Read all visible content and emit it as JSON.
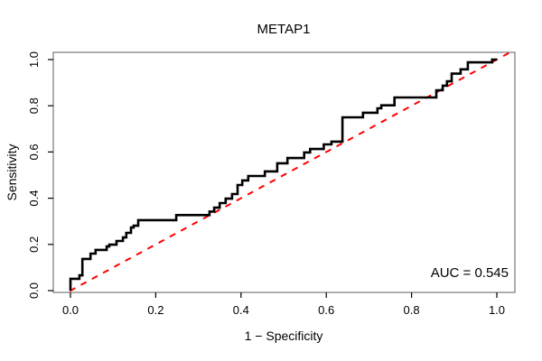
{
  "chart_data": {
    "type": "line",
    "subtype": "roc-curve",
    "title": "METAP1",
    "xlabel": "1 − Specificity",
    "ylabel": "Sensitivity",
    "xlim": [
      0.0,
      1.0
    ],
    "ylim": [
      0.0,
      1.0
    ],
    "x_tick_labels": [
      "0.0",
      "0.2",
      "0.4",
      "0.6",
      "0.8",
      "1.0"
    ],
    "y_tick_labels": [
      "0.0",
      "0.2",
      "0.4",
      "0.6",
      "0.8",
      "1.0"
    ],
    "x_tick_values": [
      0.0,
      0.2,
      0.4,
      0.6,
      0.8,
      1.0
    ],
    "y_tick_values": [
      0.0,
      0.2,
      0.4,
      0.6,
      0.8,
      1.0
    ],
    "grid": false,
    "annotation": "AUC = 0.545",
    "auc": 0.545,
    "curve_color": "#000000",
    "diagonal_color": "#ff0000",
    "diagonal_style": "dashed",
    "box_color": "#777777",
    "series": [
      {
        "name": "ROC step curve",
        "start": [
          0.0,
          0.0
        ],
        "points": [
          [
            0.0,
            0.051
          ],
          [
            0.021,
            0.066
          ],
          [
            0.028,
            0.137
          ],
          [
            0.047,
            0.16
          ],
          [
            0.059,
            0.176
          ],
          [
            0.085,
            0.191
          ],
          [
            0.091,
            0.199
          ],
          [
            0.108,
            0.215
          ],
          [
            0.123,
            0.23
          ],
          [
            0.131,
            0.25
          ],
          [
            0.142,
            0.273
          ],
          [
            0.148,
            0.281
          ],
          [
            0.159,
            0.305
          ],
          [
            0.248,
            0.327
          ],
          [
            0.326,
            0.342
          ],
          [
            0.337,
            0.359
          ],
          [
            0.35,
            0.379
          ],
          [
            0.364,
            0.398
          ],
          [
            0.379,
            0.418
          ],
          [
            0.392,
            0.457
          ],
          [
            0.403,
            0.477
          ],
          [
            0.417,
            0.496
          ],
          [
            0.456,
            0.516
          ],
          [
            0.485,
            0.551
          ],
          [
            0.509,
            0.574
          ],
          [
            0.548,
            0.598
          ],
          [
            0.562,
            0.613
          ],
          [
            0.594,
            0.633
          ],
          [
            0.612,
            0.645
          ],
          [
            0.638,
            0.75
          ],
          [
            0.686,
            0.77
          ],
          [
            0.72,
            0.789
          ],
          [
            0.729,
            0.802
          ],
          [
            0.76,
            0.836
          ],
          [
            0.858,
            0.867
          ],
          [
            0.873,
            0.887
          ],
          [
            0.883,
            0.906
          ],
          [
            0.894,
            0.939
          ],
          [
            0.915,
            0.958
          ],
          [
            0.932,
            0.988
          ],
          [
            0.989,
            1.0
          ],
          [
            1.0,
            1.0
          ]
        ]
      },
      {
        "name": "chance diagonal",
        "from": [
          0.0,
          0.0
        ],
        "to": [
          1.0,
          1.0
        ]
      }
    ]
  }
}
